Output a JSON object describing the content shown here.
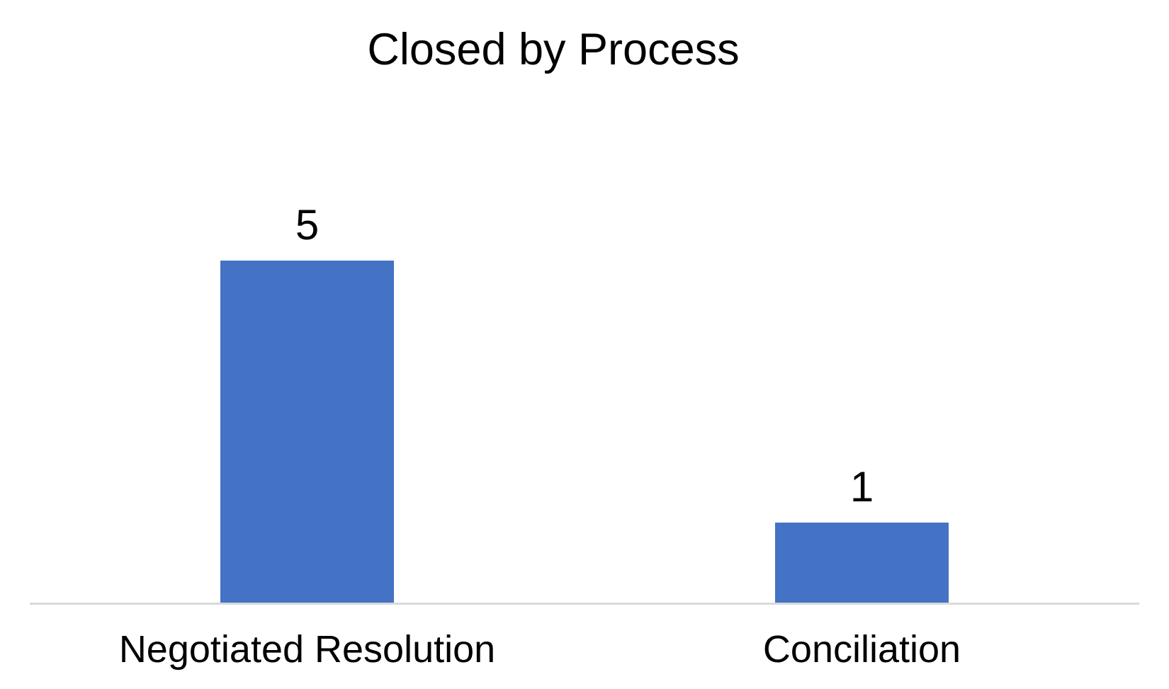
{
  "chart_data": {
    "type": "bar",
    "title": "Closed by Process",
    "categories": [
      "Negotiated Resolution",
      "Conciliation"
    ],
    "values": [
      5,
      1
    ],
    "xlabel": "",
    "ylabel": "",
    "ylim": [
      0,
      5
    ],
    "grid": false,
    "legend_position": "none",
    "data_labels_shown": true,
    "bar_color": "#4472C4",
    "axis_line_color": "#D9D9D9",
    "text_color": "#000000",
    "background_color": "#FFFFFF"
  }
}
